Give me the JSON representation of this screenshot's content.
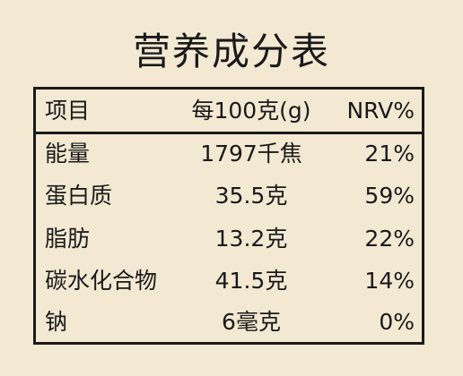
{
  "title": "营养成分表",
  "table": {
    "headers": {
      "item": "项目",
      "per100g": "每100克(g)",
      "nrv": "NRV%"
    },
    "rows": [
      {
        "item": "能量",
        "per100g": "1797千焦",
        "nrv": "21%"
      },
      {
        "item": "蛋白质",
        "per100g": "35.5克",
        "nrv": "59%"
      },
      {
        "item": "脂肪",
        "per100g": "13.2克",
        "nrv": "22%"
      },
      {
        "item": "碳水化合物",
        "per100g": "41.5克",
        "nrv": "14%"
      },
      {
        "item": "钠",
        "per100g": "6毫克",
        "nrv": "0%"
      }
    ]
  }
}
